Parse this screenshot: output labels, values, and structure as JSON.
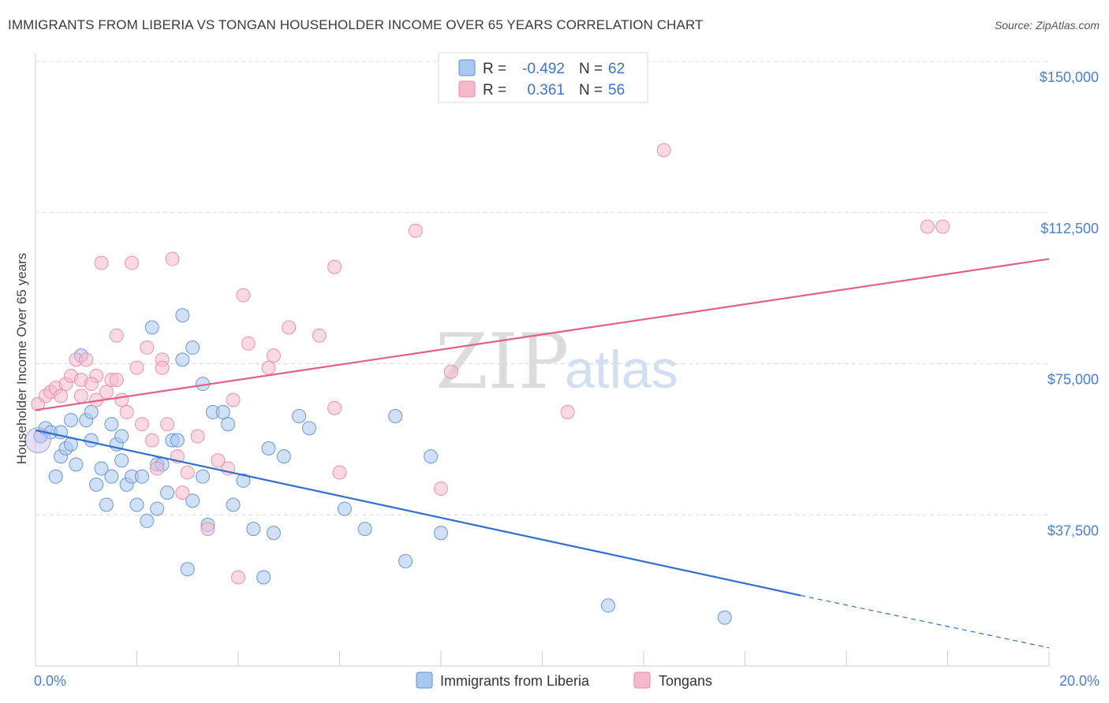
{
  "title": "IMMIGRANTS FROM LIBERIA VS TONGAN HOUSEHOLDER INCOME OVER 65 YEARS CORRELATION CHART",
  "source": "Source: ZipAtlas.com",
  "watermark": {
    "zip": "ZIP",
    "atlas": "atlas"
  },
  "legend": {
    "rows": [
      {
        "r_label": "R =",
        "r_value": "-0.492",
        "n_label": "N =",
        "n_value": "62",
        "color": "#a9c8f0"
      },
      {
        "r_label": "R =",
        "r_value": "0.361",
        "n_label": "N =",
        "n_value": "56",
        "color": "#f6b9cc"
      }
    ]
  },
  "bottom_legend": {
    "items": [
      {
        "label": "Immigrants from Liberia",
        "color": "#a9c8f0"
      },
      {
        "label": "Tongans",
        "color": "#f6b9cc"
      }
    ]
  },
  "chart_data": {
    "type": "scatter",
    "ylabel": "Householder Income Over 65 years",
    "xlim": [
      0,
      20
    ],
    "ylim": [
      0,
      150000
    ],
    "x_tick_labels": [
      "0.0%",
      "20.0%"
    ],
    "y_ticks": [
      {
        "value": 37500,
        "label": "$37,500"
      },
      {
        "value": 75000,
        "label": "$75,000"
      },
      {
        "value": 112500,
        "label": "$112,500"
      },
      {
        "value": 150000,
        "label": "$150,000"
      }
    ],
    "grid": true,
    "series": [
      {
        "name": "Immigrants from Liberia",
        "color": "#5b8fd6",
        "fill": "#a9c8f0",
        "trend": {
          "x": [
            0,
            15.1
          ],
          "y": [
            58500,
            17500
          ],
          "dashed_to": [
            20,
            4500
          ],
          "color": "#2f6fd0"
        },
        "points": [
          [
            0.1,
            57000
          ],
          [
            0.2,
            59000
          ],
          [
            0.3,
            58000
          ],
          [
            0.4,
            47000
          ],
          [
            0.5,
            58000
          ],
          [
            0.5,
            52000
          ],
          [
            0.6,
            54000
          ],
          [
            0.7,
            55000
          ],
          [
            0.7,
            61000
          ],
          [
            0.8,
            50000
          ],
          [
            0.9,
            77000
          ],
          [
            1.0,
            61000
          ],
          [
            1.1,
            56000
          ],
          [
            1.1,
            63000
          ],
          [
            1.2,
            45000
          ],
          [
            1.3,
            49000
          ],
          [
            1.4,
            40000
          ],
          [
            1.5,
            60000
          ],
          [
            1.5,
            47000
          ],
          [
            1.6,
            55000
          ],
          [
            1.7,
            51000
          ],
          [
            1.7,
            57000
          ],
          [
            1.8,
            45000
          ],
          [
            1.9,
            47000
          ],
          [
            2.0,
            40000
          ],
          [
            2.1,
            47000
          ],
          [
            2.2,
            36000
          ],
          [
            2.3,
            84000
          ],
          [
            2.4,
            39000
          ],
          [
            2.4,
            50000
          ],
          [
            2.5,
            50000
          ],
          [
            2.6,
            43000
          ],
          [
            2.7,
            56000
          ],
          [
            2.8,
            56000
          ],
          [
            2.9,
            76000
          ],
          [
            2.9,
            87000
          ],
          [
            3.0,
            24000
          ],
          [
            3.1,
            41000
          ],
          [
            3.1,
            79000
          ],
          [
            3.3,
            47000
          ],
          [
            3.4,
            35000
          ],
          [
            3.5,
            63000
          ],
          [
            3.7,
            63000
          ],
          [
            3.8,
            60000
          ],
          [
            3.9,
            40000
          ],
          [
            4.1,
            46000
          ],
          [
            4.3,
            34000
          ],
          [
            4.6,
            54000
          ],
          [
            4.7,
            33000
          ],
          [
            4.9,
            52000
          ],
          [
            5.2,
            62000
          ],
          [
            5.4,
            59000
          ],
          [
            6.1,
            39000
          ],
          [
            6.5,
            34000
          ],
          [
            7.1,
            62000
          ],
          [
            7.3,
            26000
          ],
          [
            7.8,
            52000
          ],
          [
            8.0,
            33000
          ],
          [
            11.3,
            15000
          ],
          [
            13.6,
            12000
          ],
          [
            3.3,
            70000
          ],
          [
            4.5,
            22000
          ]
        ]
      },
      {
        "name": "Tongans",
        "color": "#e88aa8",
        "fill": "#f6b9cc",
        "trend": {
          "x": [
            0,
            20
          ],
          "y": [
            63500,
            101000
          ],
          "color": "#e0608a"
        },
        "points": [
          [
            0.05,
            65000
          ],
          [
            0.2,
            67000
          ],
          [
            0.3,
            68000
          ],
          [
            0.4,
            69000
          ],
          [
            0.5,
            67000
          ],
          [
            0.6,
            70000
          ],
          [
            0.7,
            72000
          ],
          [
            0.8,
            76000
          ],
          [
            0.9,
            71000
          ],
          [
            0.9,
            67000
          ],
          [
            1.0,
            76000
          ],
          [
            1.2,
            66000
          ],
          [
            1.2,
            72000
          ],
          [
            1.3,
            100000
          ],
          [
            1.4,
            68000
          ],
          [
            1.5,
            71000
          ],
          [
            1.6,
            71000
          ],
          [
            1.6,
            82000
          ],
          [
            1.7,
            66000
          ],
          [
            1.8,
            63000
          ],
          [
            1.9,
            100000
          ],
          [
            2.0,
            74000
          ],
          [
            2.1,
            60000
          ],
          [
            2.2,
            79000
          ],
          [
            2.3,
            56000
          ],
          [
            2.4,
            49000
          ],
          [
            2.5,
            76000
          ],
          [
            2.5,
            74000
          ],
          [
            2.6,
            60000
          ],
          [
            2.7,
            101000
          ],
          [
            2.9,
            43000
          ],
          [
            3.0,
            48000
          ],
          [
            3.2,
            57000
          ],
          [
            3.4,
            34000
          ],
          [
            3.6,
            51000
          ],
          [
            3.8,
            49000
          ],
          [
            3.9,
            66000
          ],
          [
            4.0,
            22000
          ],
          [
            4.1,
            92000
          ],
          [
            4.2,
            80000
          ],
          [
            4.6,
            74000
          ],
          [
            4.7,
            77000
          ],
          [
            5.0,
            84000
          ],
          [
            5.6,
            82000
          ],
          [
            5.9,
            64000
          ],
          [
            5.9,
            99000
          ],
          [
            6.0,
            48000
          ],
          [
            7.5,
            108000
          ],
          [
            8.0,
            44000
          ],
          [
            8.2,
            73000
          ],
          [
            10.5,
            63000
          ],
          [
            12.4,
            128000
          ],
          [
            17.6,
            109000
          ],
          [
            17.9,
            109000
          ],
          [
            1.1,
            70000
          ],
          [
            2.8,
            52000
          ]
        ]
      }
    ]
  }
}
